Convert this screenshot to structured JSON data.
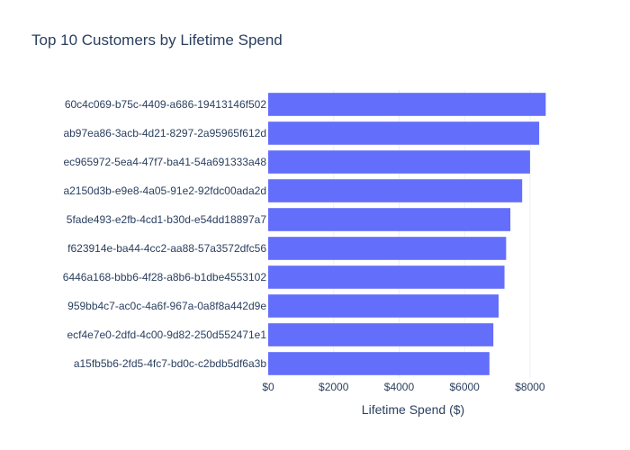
{
  "chart_data": {
    "type": "bar",
    "orientation": "horizontal",
    "title": "Top 10 Customers by Lifetime Spend",
    "xlabel": "Lifetime Spend ($)",
    "ylabel": "",
    "xlim": [
      0,
      8800
    ],
    "x_ticks": [
      0,
      2000,
      4000,
      6000,
      8000
    ],
    "x_tick_labels": [
      "$0",
      "$2000",
      "$4000",
      "$6000",
      "$8000"
    ],
    "grid": true,
    "bar_color": "#636efa",
    "categories": [
      "60c4c069-b75c-4409-a686-19413146f502",
      "ab97ea86-3acb-4d21-8297-2a95965f612d",
      "ec965972-5ea4-47f7-ba41-54a691333a48",
      "a2150d3b-e9e8-4a05-91e2-92fdc00ada2d",
      "5fade493-e2fb-4cd1-b30d-e54dd18897a7",
      "f623914e-ba44-4cc2-aa88-57a3572dfc56",
      "6446a168-bbb6-4f28-a8b6-b1dbe4553102",
      "959bb4c7-ac0c-4a6f-967a-0a8f8a442d9e",
      "ecf4e7e0-2dfd-4c00-9d82-250d552471e1",
      "a15fb5b6-2fd5-4fc7-bd0c-c2bdb5df6a3b"
    ],
    "values": [
      8480,
      8280,
      8000,
      7760,
      7400,
      7270,
      7220,
      7040,
      6880,
      6760
    ]
  }
}
